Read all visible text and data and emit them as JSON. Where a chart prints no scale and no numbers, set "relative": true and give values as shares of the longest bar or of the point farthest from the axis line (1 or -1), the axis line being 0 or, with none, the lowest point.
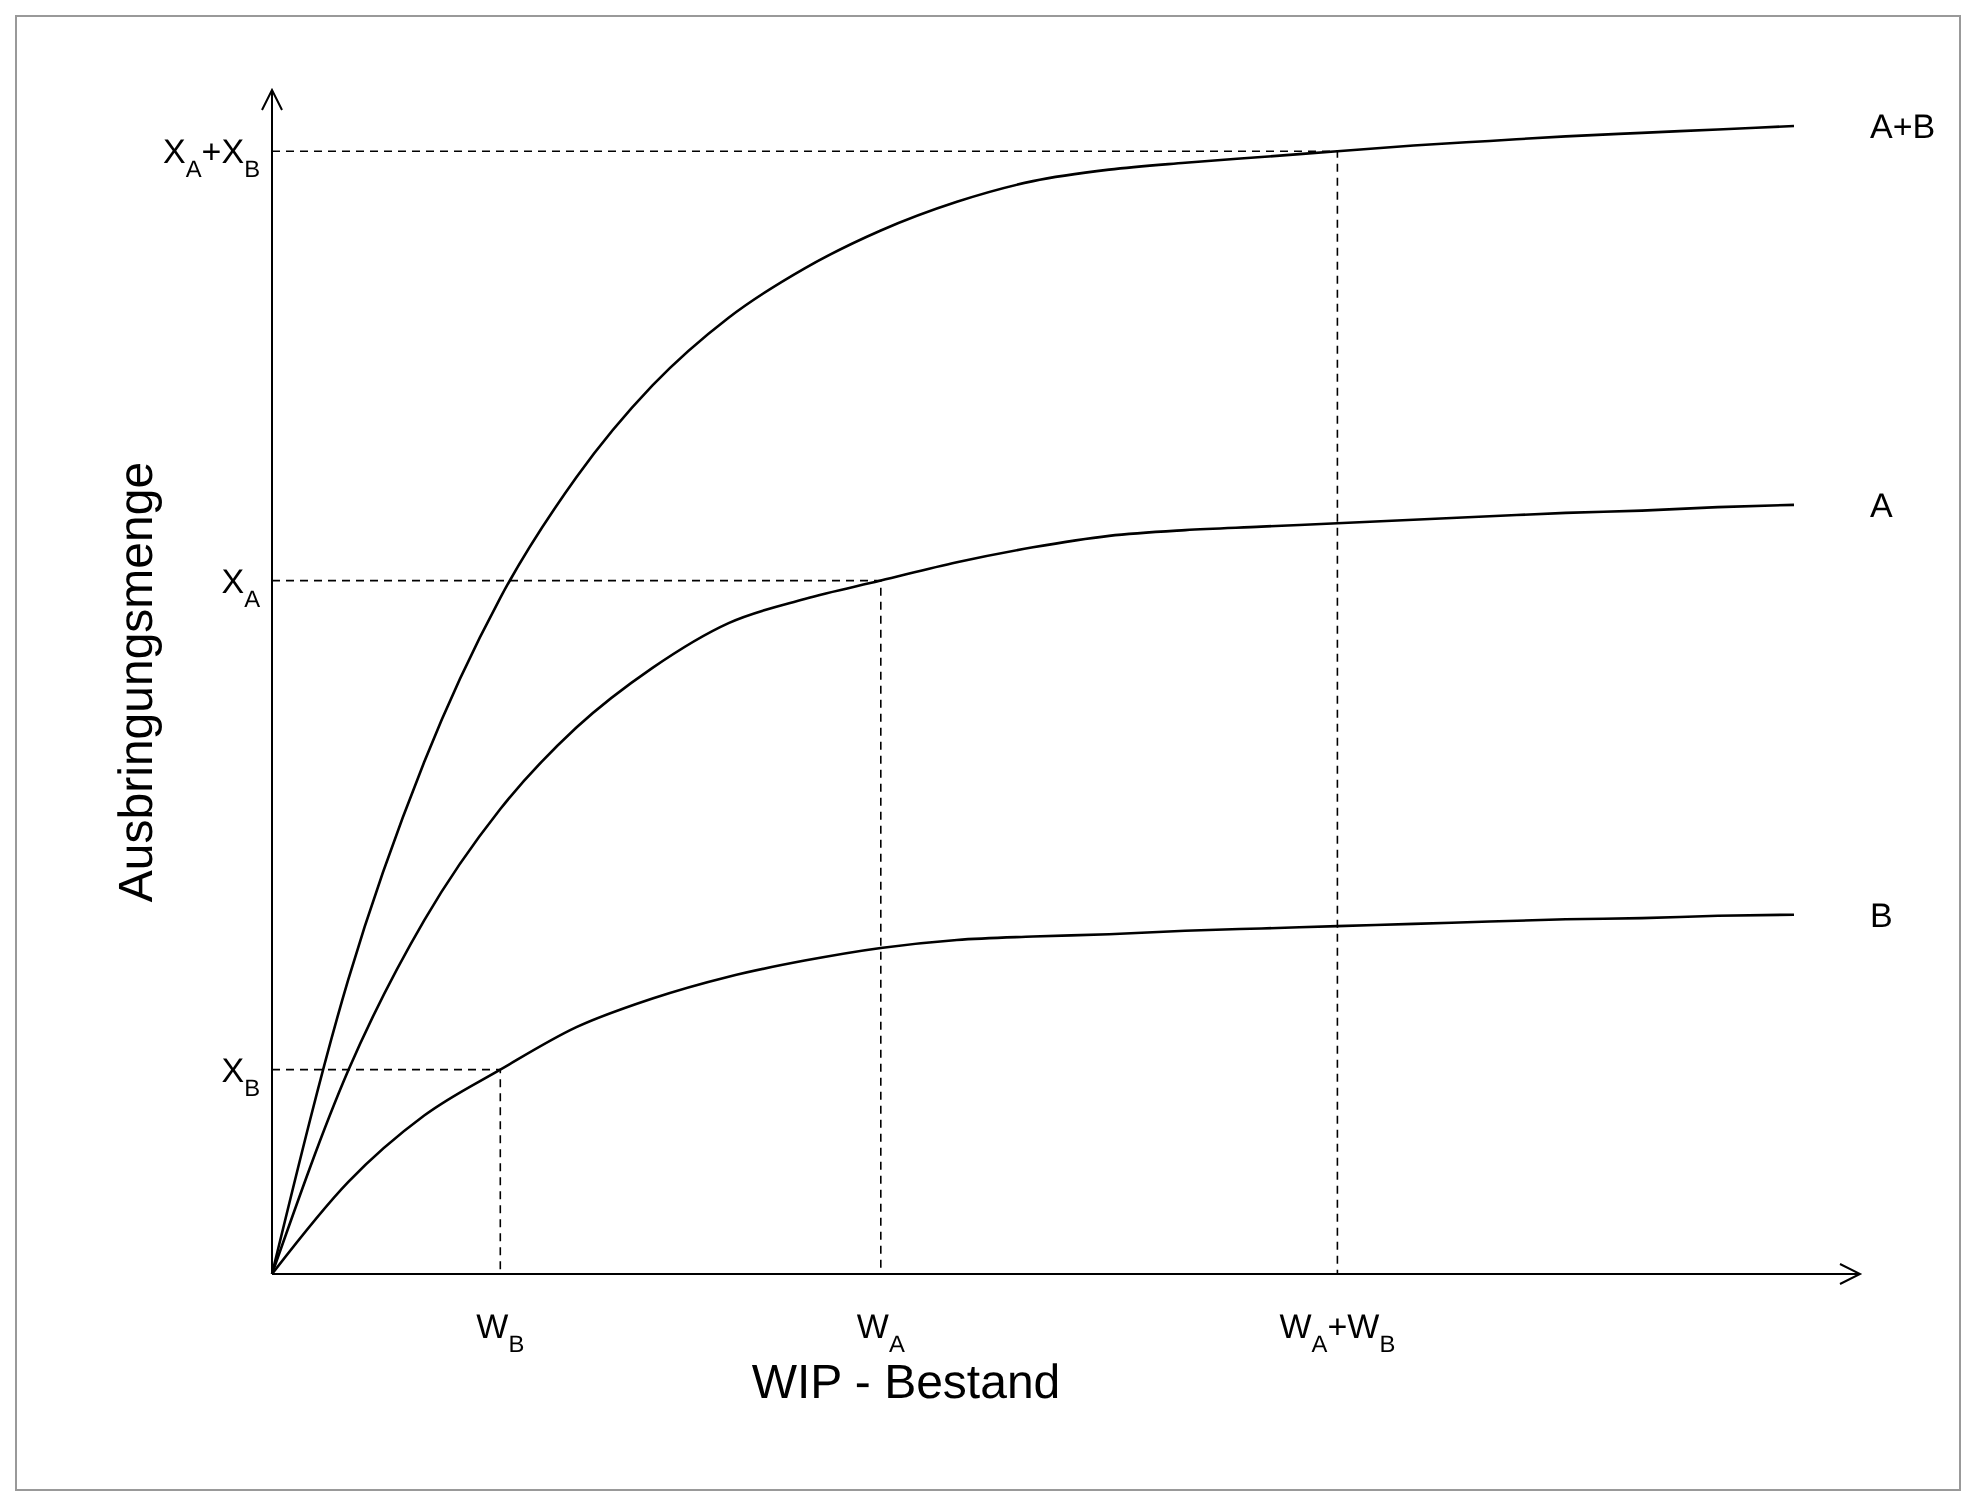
{
  "chart_data": {
    "type": "line",
    "xlabel": "WIP - Bestand",
    "ylabel": "Ausbringungsmenge",
    "relative": true,
    "categories": [
      null,
      null,
      null,
      "W$_{B}$",
      null,
      null,
      null,
      null,
      "W$_{A}$",
      null,
      null,
      null,
      null,
      null,
      "W$_{A}$+W$_{B}$",
      null,
      null,
      null,
      null,
      null,
      null
    ],
    "ref_lines": [
      {
        "axis": "y",
        "value": 0.178,
        "label": "X$_{B}$",
        "line_style": "dashed"
      },
      {
        "axis": "y",
        "value": 0.604,
        "label": "X$_{A}$",
        "line_style": "dashed"
      },
      {
        "axis": "y",
        "value": 0.978,
        "label": "X$_{A}$+X$_{B}$",
        "line_style": "dashed"
      }
    ],
    "legend": false,
    "marker": "none",
    "line_style": "solid",
    "series": [
      {
        "name": "A+B",
        "color": "#000000",
        "values": [
          0,
          0.256,
          0.446,
          0.589,
          0.694,
          0.774,
          0.833,
          0.876,
          0.909,
          0.934,
          0.952,
          0.962,
          0.968,
          0.973,
          0.978,
          0.983,
          0.987,
          0.991,
          0.994,
          0.997,
          1.0
        ]
      },
      {
        "name": "A",
        "color": "#000000",
        "values": [
          0,
          0.177,
          0.308,
          0.405,
          0.476,
          0.528,
          0.567,
          0.588,
          0.604,
          0.62,
          0.633,
          0.643,
          0.648,
          0.651,
          0.654,
          0.657,
          0.66,
          0.663,
          0.665,
          0.668,
          0.67
        ]
      },
      {
        "name": "B",
        "color": "#000000",
        "values": [
          0,
          0.08,
          0.138,
          0.178,
          0.215,
          0.24,
          0.259,
          0.273,
          0.284,
          0.291,
          0.294,
          0.296,
          0.299,
          0.301,
          0.303,
          0.305,
          0.307,
          0.309,
          0.31,
          0.312,
          0.313
        ]
      }
    ]
  }
}
